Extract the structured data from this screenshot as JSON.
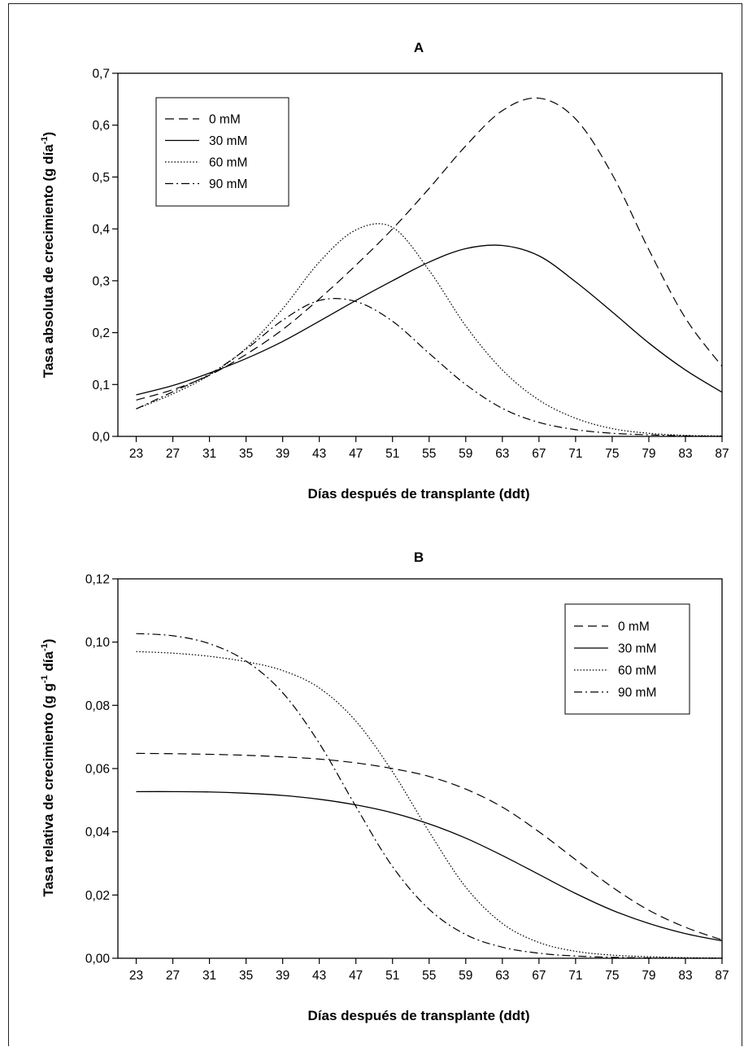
{
  "chart_data": [
    {
      "type": "line",
      "title": "A",
      "xlabel": "Días después de transplante (ddt)",
      "ylabel": {
        "base": "Tasa absoluta de crecimiento (g día",
        "sup1": "-1",
        "end": ")"
      },
      "xlim": [
        21,
        87
      ],
      "ylim": [
        0,
        0.7
      ],
      "x_ticks": [
        "23",
        "27",
        "31",
        "35",
        "39",
        "43",
        "47",
        "51",
        "55",
        "59",
        "63",
        "67",
        "71",
        "75",
        "79",
        "83",
        "87"
      ],
      "y_ticks": [
        "0,0",
        "0,1",
        "0,2",
        "0,3",
        "0,4",
        "0,5",
        "0,6",
        "0,7"
      ],
      "legend_position": "top-left",
      "x": [
        23,
        27,
        31,
        35,
        39,
        43,
        47,
        51,
        55,
        59,
        63,
        67,
        71,
        75,
        79,
        83,
        87
      ],
      "series": [
        {
          "name": "0 mM",
          "style": "long-dash",
          "values": [
            0.07,
            0.09,
            0.118,
            0.158,
            0.206,
            0.265,
            0.33,
            0.4,
            0.478,
            0.56,
            0.628,
            0.652,
            0.612,
            0.505,
            0.36,
            0.228,
            0.135
          ]
        },
        {
          "name": "30 mM",
          "style": "solid",
          "values": [
            0.08,
            0.098,
            0.122,
            0.15,
            0.183,
            0.222,
            0.262,
            0.3,
            0.336,
            0.362,
            0.368,
            0.348,
            0.298,
            0.24,
            0.18,
            0.128,
            0.085
          ]
        },
        {
          "name": "60 mM",
          "style": "dotted",
          "values": [
            0.053,
            0.082,
            0.118,
            0.17,
            0.246,
            0.336,
            0.398,
            0.403,
            0.32,
            0.213,
            0.128,
            0.07,
            0.035,
            0.015,
            0.006,
            0.002,
            0.001
          ]
        },
        {
          "name": "90 mM",
          "style": "dash-dot",
          "values": [
            0.053,
            0.086,
            0.12,
            0.168,
            0.224,
            0.262,
            0.26,
            0.222,
            0.16,
            0.1,
            0.054,
            0.027,
            0.013,
            0.006,
            0.003,
            0.001,
            0.0
          ]
        }
      ]
    },
    {
      "type": "line",
      "title": "B",
      "xlabel": "Días después de transplante (ddt)",
      "ylabel": {
        "base": "Tasa relativa de crecimiento (g g",
        "sup1": "-1",
        "mid": " día",
        "sup2": "-1",
        "end": ")"
      },
      "xlim": [
        21,
        87
      ],
      "ylim": [
        0,
        0.12
      ],
      "x_ticks": [
        "23",
        "27",
        "31",
        "35",
        "39",
        "43",
        "47",
        "51",
        "55",
        "59",
        "63",
        "67",
        "71",
        "75",
        "79",
        "83",
        "87"
      ],
      "y_ticks": [
        "0,00",
        "0,02",
        "0,04",
        "0,06",
        "0,08",
        "0,10",
        "0,12"
      ],
      "legend_position": "top-right",
      "x": [
        23,
        27,
        31,
        35,
        39,
        43,
        47,
        51,
        55,
        59,
        63,
        67,
        71,
        75,
        79,
        83,
        87
      ],
      "series": [
        {
          "name": "0 mM",
          "style": "long-dash",
          "values": [
            0.0648,
            0.0647,
            0.0645,
            0.0642,
            0.0637,
            0.063,
            0.0618,
            0.06,
            0.0575,
            0.0535,
            0.0478,
            0.04,
            0.0312,
            0.0225,
            0.0152,
            0.0098,
            0.0058
          ]
        },
        {
          "name": "30 mM",
          "style": "solid",
          "values": [
            0.0527,
            0.0527,
            0.0526,
            0.0522,
            0.0515,
            0.0503,
            0.0485,
            0.046,
            0.0425,
            0.038,
            0.0325,
            0.0265,
            0.0205,
            0.0152,
            0.011,
            0.0078,
            0.0055
          ]
        },
        {
          "name": "60 mM",
          "style": "dotted",
          "values": [
            0.097,
            0.0965,
            0.0955,
            0.0938,
            0.091,
            0.0855,
            0.075,
            0.059,
            0.04,
            0.0225,
            0.011,
            0.005,
            0.0022,
            0.001,
            0.0005,
            0.0002,
            0.0001
          ]
        },
        {
          "name": "90 mM",
          "style": "dash-dot",
          "values": [
            0.1027,
            0.102,
            0.0995,
            0.094,
            0.084,
            0.068,
            0.048,
            0.029,
            0.0155,
            0.0075,
            0.0035,
            0.0016,
            0.0007,
            0.0003,
            0.0001,
            0.0,
            0.0
          ]
        }
      ]
    }
  ]
}
